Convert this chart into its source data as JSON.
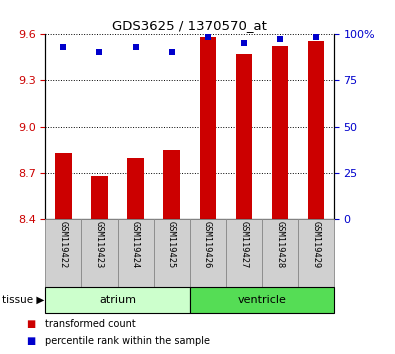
{
  "title": "GDS3625 / 1370570_at",
  "samples": [
    "GSM119422",
    "GSM119423",
    "GSM119424",
    "GSM119425",
    "GSM119426",
    "GSM119427",
    "GSM119428",
    "GSM119429"
  ],
  "bar_values": [
    8.83,
    8.68,
    8.8,
    8.85,
    9.58,
    9.47,
    9.52,
    9.55
  ],
  "bar_bottom": 8.4,
  "percentile_values": [
    93,
    90,
    93,
    90,
    98,
    95,
    97,
    98
  ],
  "ylim_left": [
    8.4,
    9.6
  ],
  "yticks_left": [
    8.4,
    8.7,
    9.0,
    9.3,
    9.6
  ],
  "ylim_right": [
    0,
    100
  ],
  "yticks_right": [
    0,
    25,
    50,
    75,
    100
  ],
  "yticklabels_right": [
    "0",
    "25",
    "50",
    "75",
    "100%"
  ],
  "bar_color": "#cc0000",
  "dot_color": "#0000cc",
  "tissue_groups": [
    {
      "label": "atrium",
      "start": 0,
      "end": 3,
      "color": "#ccffcc"
    },
    {
      "label": "ventricle",
      "start": 4,
      "end": 7,
      "color": "#55dd55"
    }
  ],
  "tissue_label": "tissue",
  "legend_items": [
    {
      "label": "transformed count",
      "color": "#cc0000"
    },
    {
      "label": "percentile rank within the sample",
      "color": "#0000cc"
    }
  ],
  "grid_color": "#000000",
  "tick_label_color_left": "#cc0000",
  "tick_label_color_right": "#0000cc",
  "sample_bg_color": "#d0d0d0",
  "sample_border_color": "#888888",
  "bar_width": 0.45
}
